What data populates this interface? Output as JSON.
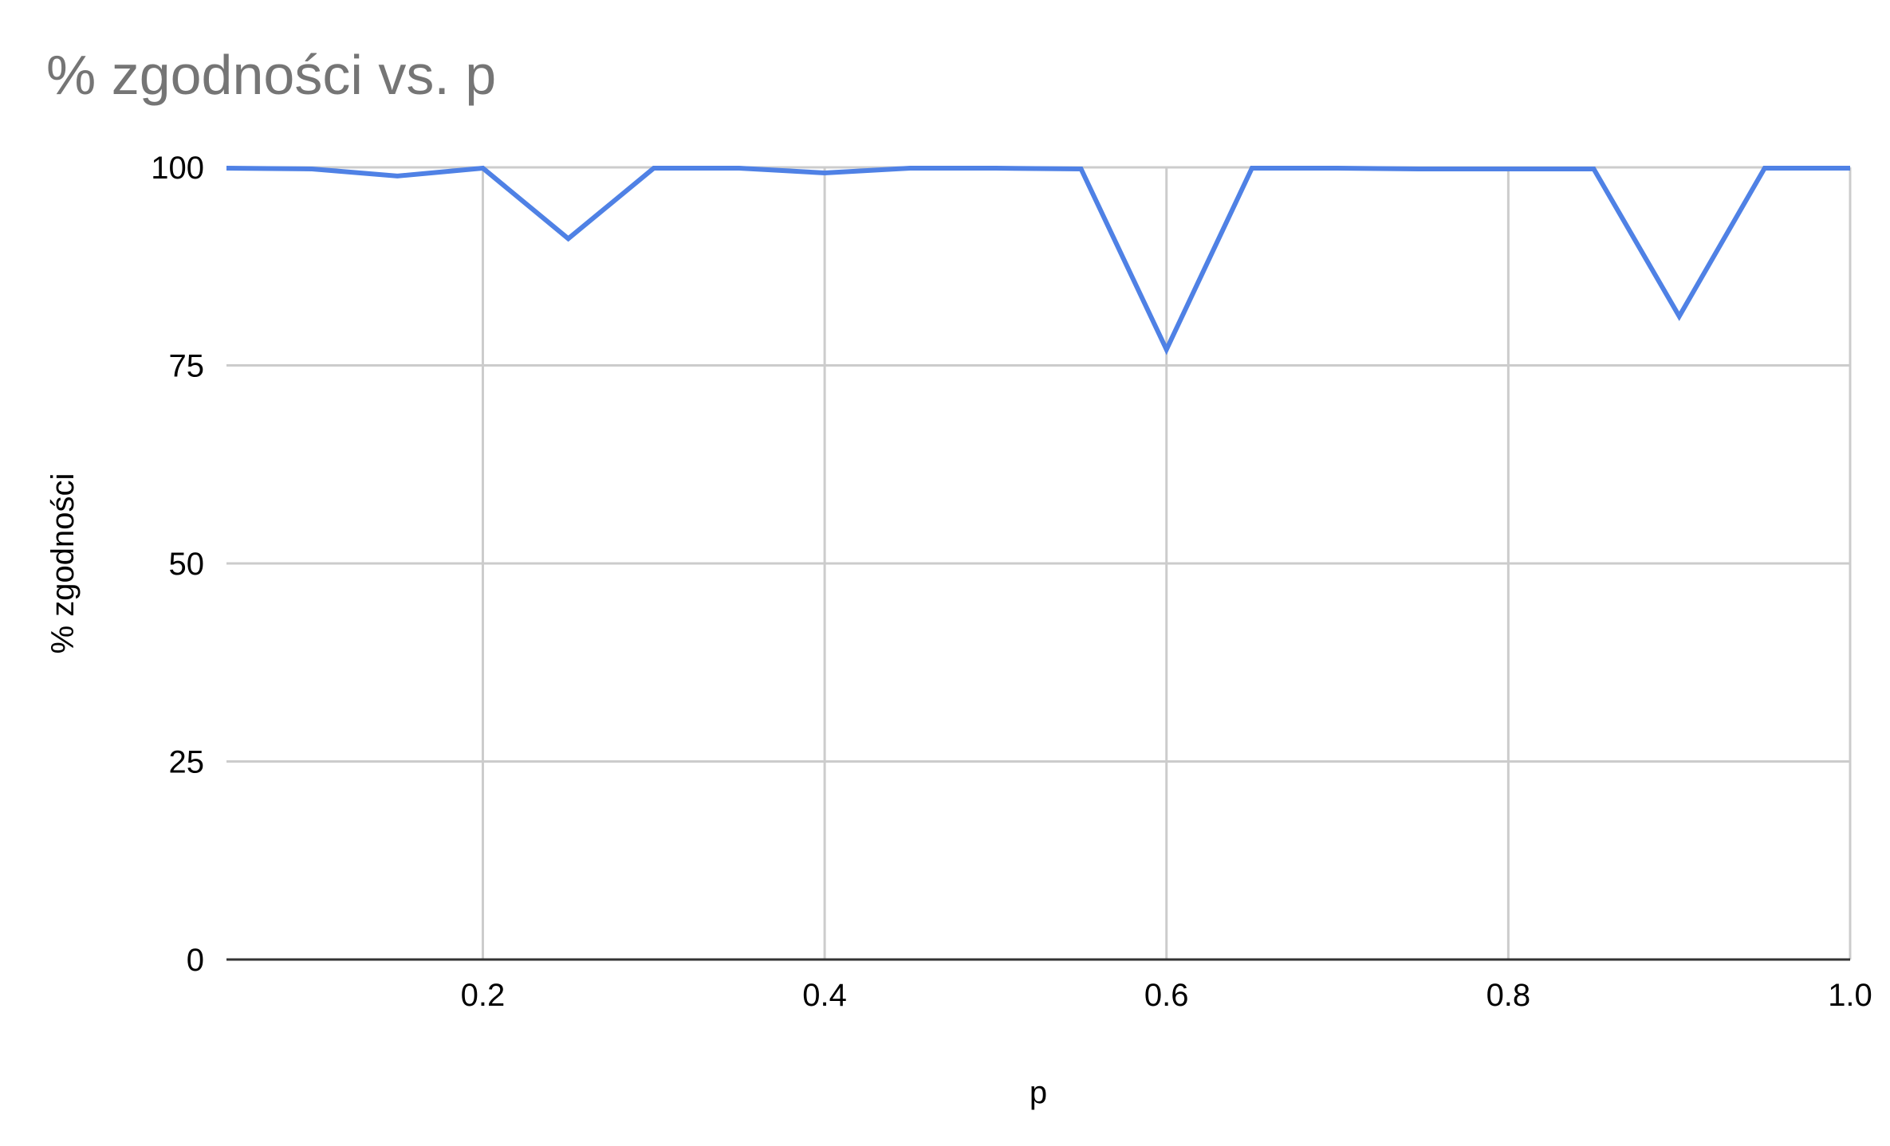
{
  "chart_data": {
    "type": "line",
    "title": "% zgodności vs. p",
    "xlabel": "p",
    "ylabel": "% zgodności",
    "xlim": [
      0.05,
      1.0
    ],
    "ylim": [
      0,
      100
    ],
    "x_ticks": [
      0.2,
      0.4,
      0.6,
      0.8,
      1.0
    ],
    "x_tick_labels": [
      "0.2",
      "0.4",
      "0.6",
      "0.8",
      "1.0"
    ],
    "y_ticks": [
      0,
      25,
      50,
      75,
      100
    ],
    "y_tick_labels": [
      "0",
      "25",
      "50",
      "75",
      "100"
    ],
    "grid": true,
    "legend": "none",
    "series": [
      {
        "color": "#4f81e5",
        "x": [
          0.05,
          0.1,
          0.15,
          0.2,
          0.25,
          0.3,
          0.35,
          0.4,
          0.45,
          0.5,
          0.55,
          0.6,
          0.65,
          0.7,
          0.75,
          0.8,
          0.85,
          0.9,
          0.95,
          1.0
        ],
        "y": [
          99.9,
          99.8,
          98.9,
          99.9,
          91.0,
          99.9,
          99.9,
          99.3,
          99.9,
          99.9,
          99.8,
          77.0,
          99.9,
          99.9,
          99.8,
          99.8,
          99.8,
          81.2,
          99.9,
          99.9
        ]
      }
    ]
  }
}
